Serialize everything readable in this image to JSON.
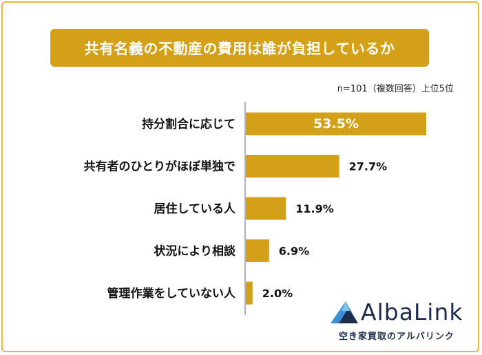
{
  "title": "共有名義の不動産の費用は誰が負担しているか",
  "note": "n=101（複数回答）上位5位",
  "chart_data": {
    "type": "bar",
    "orientation": "horizontal",
    "title": "共有名義の不動産の費用は誰が負担しているか",
    "categories": [
      "持分割合に応じて",
      "共有者のひとりがほぼ単独で",
      "居住している人",
      "状況により相談",
      "管理作業をしていない人"
    ],
    "values": [
      53.5,
      27.7,
      11.9,
      6.9,
      2.0
    ],
    "value_labels": [
      "53.5%",
      "27.7%",
      "11.9%",
      "6.9%",
      "2.0%"
    ],
    "xlim": [
      0,
      100
    ],
    "grid": false,
    "bar_color": "#d4a017"
  },
  "brand": {
    "name": "AlbaLink",
    "tagline": "空き家買取のアルバリンク"
  },
  "colors": {
    "accent": "#d4a017",
    "frame": "#e5b93c",
    "brand_dark": "#1f2d4d",
    "brand_blue": "#3a8fd6"
  }
}
